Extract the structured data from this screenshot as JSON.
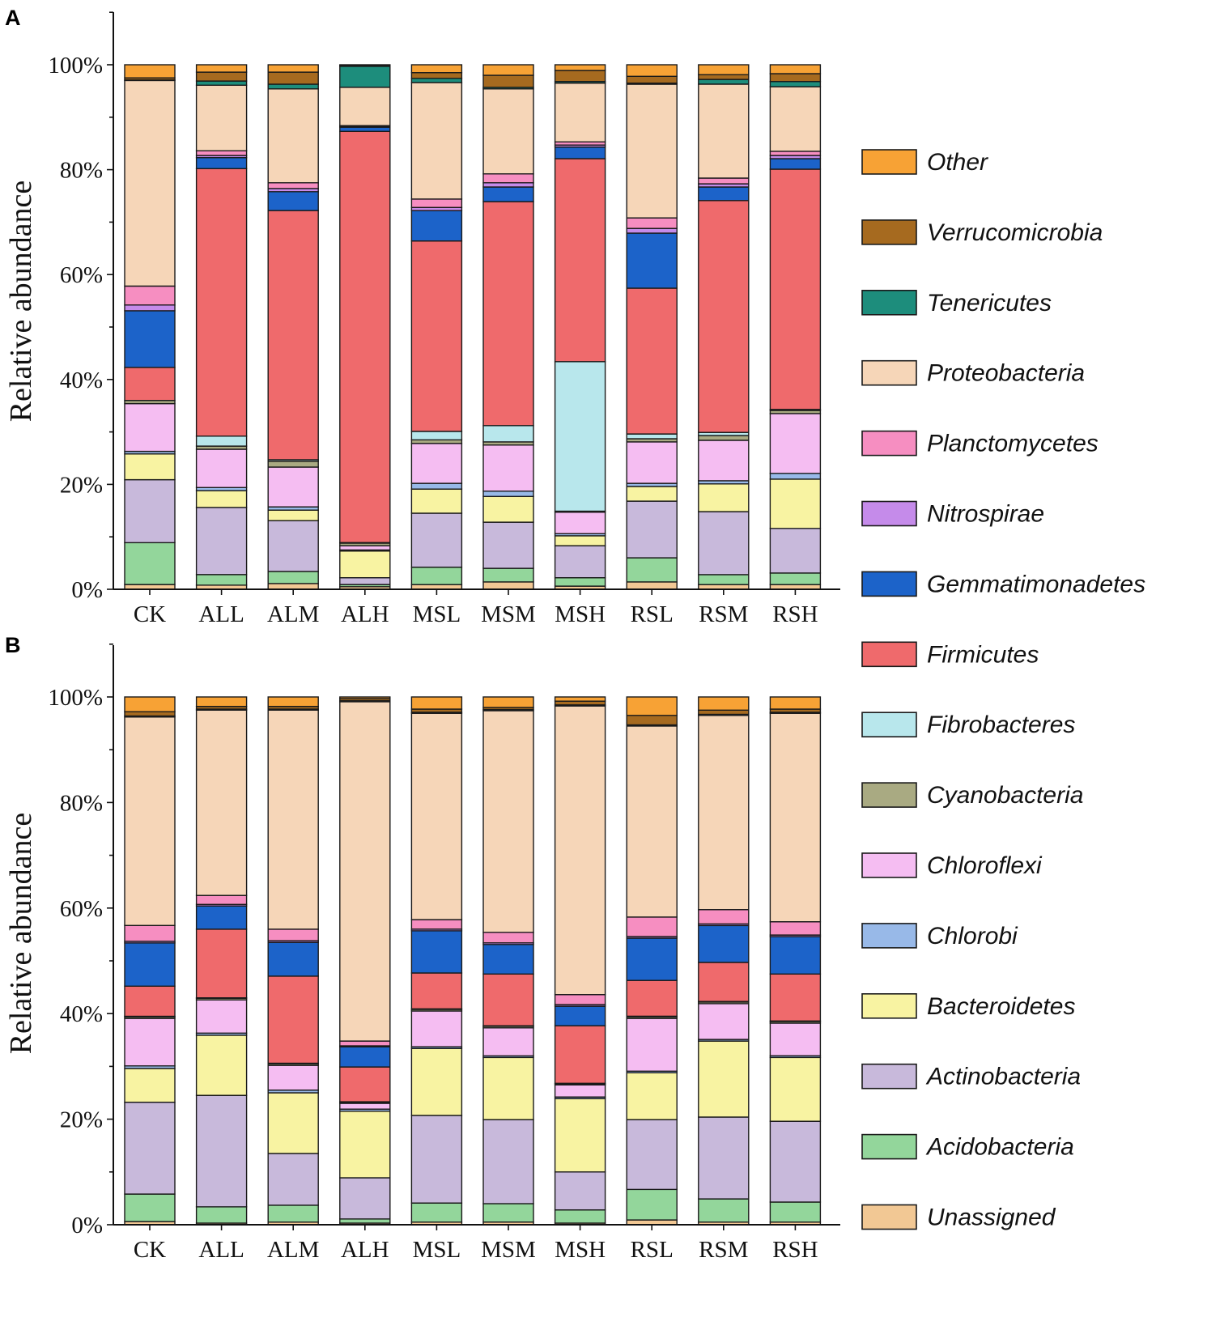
{
  "chart_data": {
    "type": "bar",
    "stacked": true,
    "panels": [
      "A",
      "B"
    ],
    "categories": [
      "CK",
      "ALL",
      "ALM",
      "ALH",
      "MSL",
      "MSM",
      "MSH",
      "RSL",
      "RSM",
      "RSH"
    ],
    "xlabel": "",
    "ylabel": "Relative abundance",
    "ylim": [
      0,
      110
    ],
    "yticks": [
      0,
      20,
      40,
      60,
      80,
      100
    ],
    "ytick_labels": [
      "0%",
      "20%",
      "40%",
      "60%",
      "80%",
      "100%"
    ],
    "legend_position": "right",
    "series_stack_order": "bottom-to-top",
    "series": [
      {
        "name": "Unassigned",
        "color": "#F2C894",
        "values": {
          "A": [
            0.9,
            0.8,
            1.1,
            0.5,
            0.9,
            1.4,
            0.6,
            1.4,
            0.9,
            0.9
          ],
          "B": [
            0.6,
            0.3,
            0.5,
            0.3,
            0.5,
            0.5,
            0.3,
            0.9,
            0.5,
            0.5
          ]
        }
      },
      {
        "name": "Acidobacteria",
        "color": "#93D69B",
        "values": {
          "A": [
            8.0,
            2.0,
            2.3,
            0.4,
            3.3,
            2.6,
            1.6,
            4.6,
            1.9,
            2.2
          ],
          "B": [
            5.2,
            3.1,
            3.2,
            0.8,
            3.6,
            3.5,
            2.5,
            5.8,
            4.4,
            3.8
          ]
        }
      },
      {
        "name": "Actinobacteria",
        "color": "#C8B9DB",
        "values": {
          "A": [
            12.0,
            12.8,
            9.7,
            1.3,
            10.3,
            8.8,
            6.1,
            10.8,
            12.0,
            8.5
          ],
          "B": [
            17.4,
            21.1,
            9.8,
            7.8,
            16.6,
            15.9,
            7.2,
            13.2,
            15.5,
            15.3
          ]
        }
      },
      {
        "name": "Bacteroidetes",
        "color": "#F8F3A2",
        "values": {
          "A": [
            4.9,
            3.2,
            2.0,
            5.1,
            4.6,
            4.9,
            1.9,
            2.8,
            5.3,
            9.4
          ],
          "B": [
            6.4,
            11.4,
            11.5,
            12.6,
            12.7,
            11.8,
            13.9,
            8.9,
            14.4,
            12.1
          ]
        }
      },
      {
        "name": "Chlorobi",
        "color": "#98B9E8",
        "values": {
          "A": [
            0.5,
            0.6,
            0.6,
            0.2,
            1.1,
            1.0,
            0.4,
            0.6,
            0.6,
            1.1
          ],
          "B": [
            0.5,
            0.4,
            0.5,
            0.4,
            0.3,
            0.3,
            0.3,
            0.3,
            0.3,
            0.3
          ]
        }
      },
      {
        "name": "Chloroflexi",
        "color": "#F5BDF2",
        "values": {
          "A": [
            9.1,
            7.3,
            7.6,
            0.8,
            7.6,
            8.8,
            4.1,
            7.9,
            7.7,
            11.4
          ],
          "B": [
            9.0,
            6.3,
            4.7,
            1.1,
            6.8,
            5.3,
            2.3,
            10.0,
            6.8,
            6.2
          ]
        }
      },
      {
        "name": "Cyanobacteria",
        "color": "#A9AA82",
        "values": {
          "A": [
            0.6,
            0.6,
            1.1,
            0.5,
            0.7,
            0.6,
            0.2,
            0.6,
            0.9,
            0.6
          ],
          "B": [
            0.3,
            0.3,
            0.3,
            0.2,
            0.3,
            0.3,
            0.2,
            0.3,
            0.3,
            0.3
          ]
        }
      },
      {
        "name": "Fibrobacteres",
        "color": "#B8E7EC",
        "values": {
          "A": [
            0.0,
            1.9,
            0.3,
            0.1,
            1.6,
            3.1,
            28.5,
            0.9,
            0.6,
            0.2
          ],
          "B": [
            0.1,
            0.1,
            0.1,
            0.1,
            0.1,
            0.1,
            0.1,
            0.1,
            0.1,
            0.1
          ]
        }
      },
      {
        "name": "Firmicutes",
        "color": "#EF6A6C",
        "values": {
          "A": [
            6.3,
            51.0,
            47.5,
            78.4,
            36.3,
            42.7,
            38.7,
            27.8,
            44.2,
            45.8
          ],
          "B": [
            5.7,
            13.0,
            16.5,
            6.6,
            6.8,
            9.8,
            10.9,
            6.8,
            7.4,
            8.9
          ]
        }
      },
      {
        "name": "Gemmatimonadetes",
        "color": "#1C63C9",
        "values": {
          "A": [
            10.8,
            2.1,
            3.6,
            0.8,
            5.8,
            2.8,
            2.2,
            10.5,
            2.6,
            2.0
          ],
          "B": [
            8.2,
            4.4,
            6.4,
            3.8,
            8.0,
            5.6,
            3.7,
            8.0,
            7.0,
            7.1
          ]
        }
      },
      {
        "name": "Nitrospirae",
        "color": "#C58BEA",
        "values": {
          "A": [
            1.1,
            0.4,
            0.6,
            0.1,
            0.6,
            0.8,
            0.4,
            0.9,
            0.6,
            0.6
          ],
          "B": [
            0.3,
            0.3,
            0.3,
            0.2,
            0.3,
            0.3,
            0.3,
            0.3,
            0.3,
            0.3
          ]
        }
      },
      {
        "name": "Planctomycetes",
        "color": "#F68EC1",
        "values": {
          "A": [
            3.6,
            0.9,
            1.1,
            0.2,
            1.6,
            1.7,
            0.6,
            2.0,
            1.1,
            0.8
          ],
          "B": [
            3.0,
            1.7,
            2.2,
            0.9,
            1.8,
            2.0,
            1.9,
            3.7,
            2.7,
            2.5
          ]
        }
      },
      {
        "name": "Proteobacteria",
        "color": "#F6D6B8",
        "values": {
          "A": [
            39.2,
            12.5,
            17.9,
            7.3,
            22.2,
            16.2,
            11.2,
            25.5,
            17.9,
            12.3
          ],
          "B": [
            39.5,
            35.1,
            41.5,
            64.3,
            39.1,
            42.0,
            54.7,
            36.2,
            36.8,
            39.5
          ]
        }
      },
      {
        "name": "Tenericutes",
        "color": "#1D8D7C",
        "values": {
          "A": [
            0.1,
            0.8,
            0.9,
            4.0,
            0.8,
            0.3,
            0.3,
            0.2,
            0.9,
            1.0
          ],
          "B": [
            0.2,
            0.2,
            0.2,
            0.2,
            0.2,
            0.2,
            0.2,
            0.2,
            0.2,
            0.2
          ]
        }
      },
      {
        "name": "Verrucomicrobia",
        "color": "#A66A1F",
        "values": {
          "A": [
            0.4,
            1.7,
            2.3,
            0.2,
            1.1,
            2.3,
            2.1,
            1.3,
            0.9,
            1.5
          ],
          "B": [
            0.8,
            0.5,
            0.5,
            0.4,
            0.6,
            0.4,
            0.7,
            1.8,
            0.8,
            0.6
          ]
        }
      },
      {
        "name": "Other",
        "color": "#F7A235",
        "values": {
          "A": [
            2.5,
            1.4,
            1.4,
            0.1,
            1.5,
            2.0,
            1.1,
            2.2,
            1.9,
            1.7
          ],
          "B": [
            2.8,
            1.8,
            1.8,
            0.3,
            2.3,
            2.0,
            0.8,
            3.5,
            2.5,
            2.3
          ]
        }
      }
    ]
  }
}
